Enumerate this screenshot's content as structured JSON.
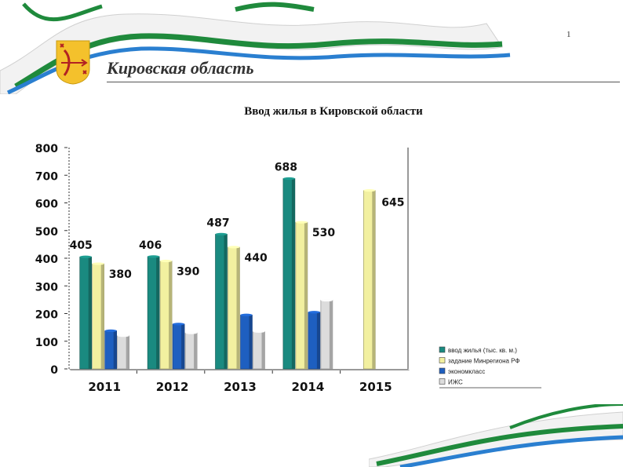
{
  "slide": {
    "page_number": "1",
    "region_title": "Кировская область",
    "chart_title": "Ввод жилья в Кировской области"
  },
  "colors": {
    "ribbon_white": "#f4f4f4",
    "ribbon_green": "#1f8a3c",
    "ribbon_blue": "#2a7fd0"
  },
  "chart_data": {
    "type": "bar",
    "title": "Ввод жилья в Кировской области",
    "xlabel": "",
    "ylabel": "",
    "ylim": [
      0,
      800
    ],
    "yticks": [
      "0",
      "100",
      "200",
      "300",
      "400",
      "500",
      "600",
      "700",
      "800"
    ],
    "categories": [
      "2011",
      "2012",
      "2013",
      "2014",
      "2015"
    ],
    "grid": false,
    "legend_position": "bottom-right",
    "series": [
      {
        "name": "ввод жилья (тыс. кв. м.)",
        "color": "#1a8a80",
        "values": [
          405,
          406,
          487,
          688,
          null
        ],
        "labels": [
          "405",
          "406",
          "487",
          "688",
          ""
        ]
      },
      {
        "name": "задание Минрегиона РФ",
        "color": "#f2f0a0",
        "values": [
          380,
          390,
          440,
          530,
          645
        ],
        "labels": [
          "380",
          "390",
          "440",
          "530",
          "645"
        ]
      },
      {
        "name": "экономкласс",
        "color": "#1e5fc0",
        "values": [
          138,
          162,
          195,
          205,
          null
        ],
        "labels": [
          "",
          "",
          "",
          "",
          ""
        ]
      },
      {
        "name": "ИЖС",
        "color": "#dcdcdc",
        "values": [
          120,
          130,
          135,
          248,
          null
        ],
        "labels": [
          "",
          "",
          "",
          "",
          ""
        ]
      }
    ]
  }
}
